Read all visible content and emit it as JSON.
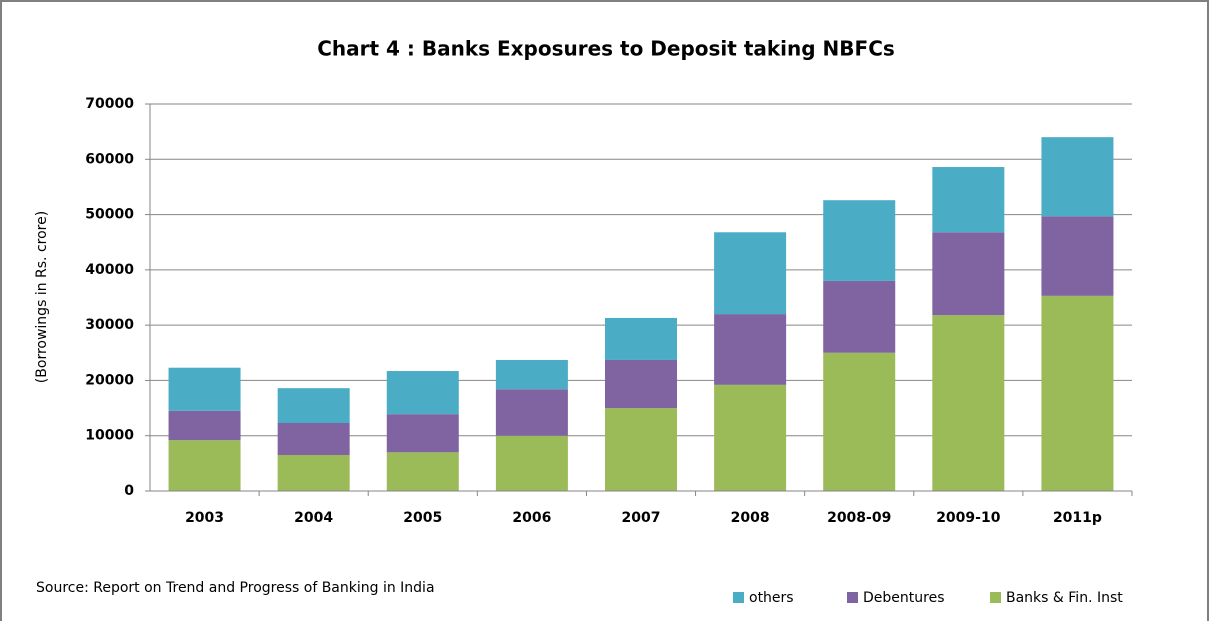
{
  "chart_data": {
    "type": "stacked_bar",
    "title": "Chart 4  : Banks Exposures to Deposit taking NBFCs",
    "y_label": "(Borrowings in Rs. crore)",
    "source": "Source: Report on Trend and Progress of Banking in India",
    "categories": [
      "2003",
      "2004",
      "2005",
      "2006",
      "2007",
      "2008",
      "2008-09",
      "2009-10",
      "2011p"
    ],
    "series": [
      {
        "name": "Banks & Fin. Inst",
        "color": "#9bbb59",
        "values": [
          9200,
          6500,
          7000,
          10000,
          15000,
          19200,
          25000,
          31800,
          35300
        ]
      },
      {
        "name": "Debentures",
        "color": "#8064a2",
        "values": [
          5300,
          5800,
          6900,
          8400,
          8700,
          12800,
          13000,
          15000,
          14400
        ]
      },
      {
        "name": "others",
        "color": "#4bacc6",
        "values": [
          7800,
          6300,
          7800,
          5300,
          7600,
          14800,
          14600,
          11800,
          14300
        ]
      }
    ],
    "ylim": [
      0,
      70000
    ],
    "yticks": [
      0,
      10000,
      20000,
      30000,
      40000,
      50000,
      60000,
      70000
    ],
    "grid": true,
    "legend": "bottom-right"
  }
}
